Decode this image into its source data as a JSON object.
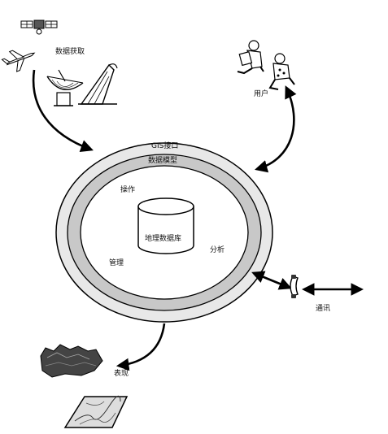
{
  "labels": {
    "data_acquisition": "数据获取",
    "users": "用户",
    "gis_interface": "GIS接口",
    "data_model": "数据模型",
    "operation": "操作",
    "database": "地理数据库",
    "management": "管理",
    "analysis": "分析",
    "communication": "通讯",
    "presentation": "表现"
  },
  "icons": {
    "satellite": "satellite-icon",
    "airplane": "airplane-icon",
    "dish": "satellite-dish-icon",
    "survey": "survey-station-icon",
    "user_reading": "reader-user-icon",
    "user_sitting": "sitting-user-icon",
    "telephone": "telephone-icon",
    "terrain": "terrain-3d-icon",
    "map": "map-sheet-icon"
  },
  "colors": {
    "outer_ring": "#e8e8e8",
    "middle_ring": "#c8c8c8",
    "inner_disk": "#ffffff",
    "stroke": "#000000"
  }
}
